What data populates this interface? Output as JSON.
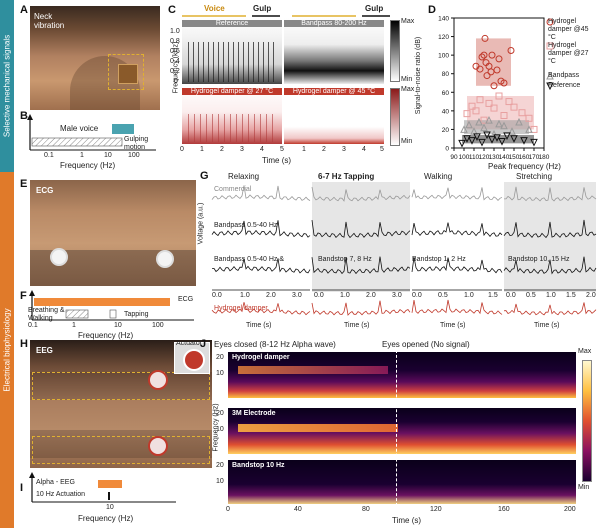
{
  "sections": {
    "mechanical": "Selective mechanical signals",
    "electrical": "Electrical biophysiology"
  },
  "colors": {
    "mechanical_bar": "#2f8f9e",
    "electrical_bar": "#e07a2a",
    "red": "#c0392b",
    "pink": "#e8a0a0",
    "gray": "#9a9a9a",
    "black": "#111111",
    "orange_fill": "#f08a3a"
  },
  "panelA": {
    "label": "A",
    "caption": "Neck\nvibration"
  },
  "panelB": {
    "label": "B",
    "male_voice": "Male voice",
    "gulping": "Gulping\nmotion",
    "ticks": [
      "0.1",
      "1",
      "10",
      "100"
    ],
    "xlabel": "Frequency (Hz)"
  },
  "panelC": {
    "label": "C",
    "voice": "Voice",
    "gulp1": "Gulp",
    "gulp2": "Gulp",
    "titles": [
      "Reference",
      "Bandpass  80-200 Hz",
      "Hydrogel damper @ 27 °C",
      "Hydrogel damper @ 45 °C"
    ],
    "ylabel": "Frequency (kHz)",
    "yticks": [
      "1.0",
      "0.8",
      "0.6",
      "0.4",
      "0.2",
      "0"
    ],
    "xticks": [
      "0",
      "1",
      "2",
      "3",
      "4",
      "5"
    ],
    "xticks2": [
      "1",
      "2",
      "3",
      "4",
      "5"
    ],
    "xlabel": "Time (s)",
    "cbar_max": "Max",
    "cbar_min": "Min",
    "cbar2_max": "Max",
    "cbar2_min": "Min"
  },
  "panelD": {
    "label": "D",
    "ylabel": "Signal-to-noise ratio (dB)",
    "xlabel": "Peak frequency (Hz)",
    "legend": [
      "Hydrogel damper @45 °C",
      "Hydrogel damper @27 °C",
      "Bandpass",
      "Reference"
    ]
  },
  "chart_data": {
    "type": "scatter",
    "xlabel": "Peak frequency (Hz)",
    "ylabel": "Signal-to-noise ratio (dB)",
    "xlim": [
      90,
      180
    ],
    "ylim": [
      0,
      140
    ],
    "xticks": [
      90,
      100,
      110,
      120,
      130,
      140,
      150,
      160,
      170,
      180
    ],
    "yticks": [
      0,
      20,
      40,
      60,
      80,
      100,
      120,
      140
    ],
    "series": [
      {
        "name": "Hydrogel damper @45 °C",
        "marker": "circle",
        "color": "#c0392b",
        "x": [
          112,
          116,
          118,
          120,
          121,
          122,
          123,
          125,
          127,
          128,
          130,
          133,
          135,
          137,
          140,
          147
        ],
        "y": [
          88,
          85,
          98,
          100,
          118,
          92,
          78,
          88,
          82,
          100,
          67,
          84,
          96,
          72,
          70,
          105
        ]
      },
      {
        "name": "Hydrogel damper @27 °C",
        "marker": "square",
        "color": "#e8a0a0",
        "x": [
          103,
          108,
          112,
          116,
          120,
          125,
          130,
          135,
          140,
          145,
          150,
          158,
          165,
          170
        ],
        "y": [
          37,
          45,
          40,
          52,
          30,
          48,
          43,
          56,
          35,
          50,
          44,
          38,
          32,
          20
        ]
      },
      {
        "name": "Bandpass",
        "marker": "triangle-up",
        "color": "#9a9a9a",
        "x": [
          100,
          105,
          110,
          115,
          120,
          125,
          130,
          135,
          140,
          148,
          155,
          165
        ],
        "y": [
          20,
          25,
          18,
          28,
          22,
          30,
          15,
          26,
          24,
          18,
          28,
          20
        ]
      },
      {
        "name": "Reference",
        "marker": "triangle-down",
        "color": "#111111",
        "x": [
          98,
          103,
          108,
          113,
          118,
          123,
          128,
          133,
          138,
          143,
          150,
          160,
          170
        ],
        "y": [
          5,
          10,
          8,
          12,
          6,
          14,
          9,
          11,
          7,
          13,
          10,
          8,
          6
        ]
      }
    ]
  },
  "panelE": {
    "label": "E",
    "caption": "ECG"
  },
  "panelF": {
    "label": "F",
    "ecg": "ECG",
    "breathing": "Breathing &\nWalking",
    "tapping": "Tapping",
    "ticks": [
      "0.1",
      "1",
      "10",
      "100"
    ],
    "xlabel": "Frequency (Hz)"
  },
  "panelG": {
    "label": "G",
    "headers": [
      "Relaxing",
      "6-7 Hz Tapping",
      "Walking",
      "Stretching"
    ],
    "traces": [
      "Commercial",
      "Bandpass 0.5-40 Hz",
      "Bandpass 0.5-40 Hz &",
      "Hydrogel damper"
    ],
    "bandstops": [
      "Bandstop 7, 8 Hz",
      "Bandstop 1, 2 Hz",
      "Bandstop 10, 15 Hz"
    ],
    "ylabel": "Voltage (a.u.)",
    "ticks_a": [
      "0.0",
      "1.0",
      "2.0",
      "3.0"
    ],
    "ticks_b": [
      "0.0",
      "1.0",
      "2.0",
      "3.0"
    ],
    "ticks_c": [
      "0.0",
      "0.5",
      "1.0",
      "1.5"
    ],
    "ticks_d": [
      "0.0",
      "0.5",
      "1.0",
      "1.5",
      "2.0"
    ],
    "xlabel": "Time (s)"
  },
  "panelH": {
    "label": "H",
    "caption": "EEG",
    "actuator": "Actuator"
  },
  "panelI": {
    "label": "I",
    "alpha": "Alpha - EEG",
    "actuation": "10 Hz Actuation",
    "tick": "10",
    "xlabel": "Frequency (Hz)"
  },
  "panelJ": {
    "label": "J",
    "closed": "Eyes closed (8-12 Hz Alpha wave)",
    "opened": "Eyes opened (No signal)",
    "titles": [
      "Hydrogel damper",
      "3M Electrode",
      "Bandstop 10 Hz"
    ],
    "ylabel": "Frequency (Hz)",
    "yticks": [
      "20",
      "10"
    ],
    "xticks": [
      "0",
      "40",
      "80",
      "120",
      "160",
      "200"
    ],
    "xlabel": "Time (s)",
    "cbar_max": "Max",
    "cbar_min": "Min"
  }
}
